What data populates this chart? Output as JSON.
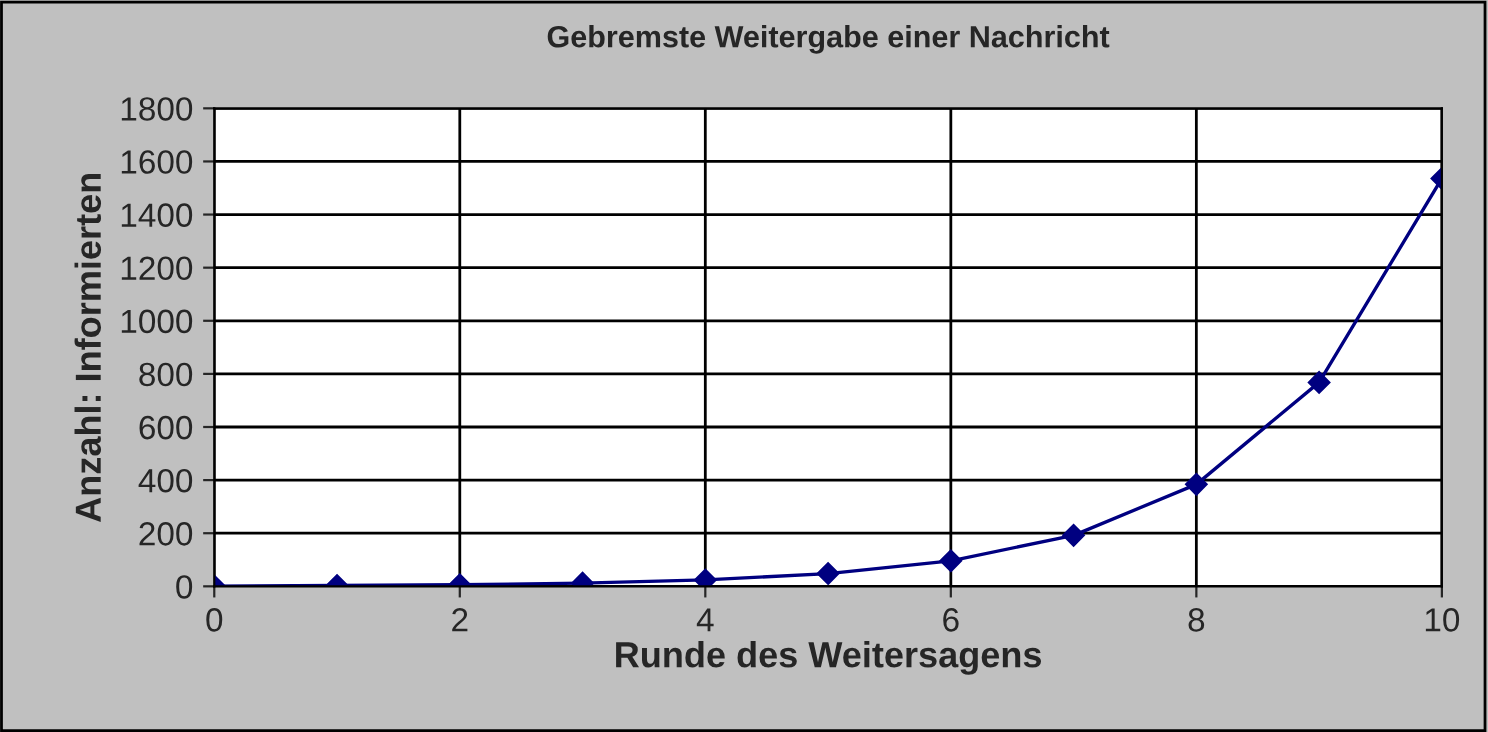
{
  "chart_data": {
    "type": "line",
    "title": "Gebremste Weitergabe einer Nachricht",
    "xlabel": "Runde des Weitersagens",
    "ylabel": "Anzahl: Informierten",
    "x": [
      0,
      1,
      2,
      3,
      4,
      5,
      6,
      7,
      8,
      9,
      10
    ],
    "series": [
      {
        "color": "#000080",
        "values": [
          1,
          3,
          6,
          12,
          24,
          48,
          96,
          192,
          384,
          768,
          1536
        ]
      }
    ],
    "xlim": [
      0,
      10
    ],
    "xticks": [
      0,
      2,
      4,
      6,
      8,
      10
    ],
    "ylim": [
      0,
      1800
    ],
    "yticks": [
      0,
      200,
      400,
      600,
      800,
      1000,
      1200,
      1400,
      1600,
      1800
    ],
    "grid": true,
    "marker": "diamond",
    "line_style": "solid"
  }
}
